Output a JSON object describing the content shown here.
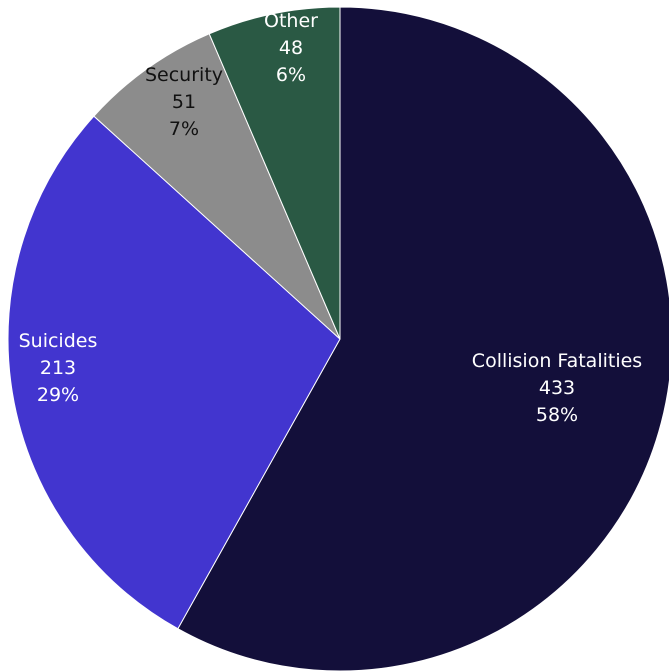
{
  "chart_data": {
    "type": "pie",
    "title": "",
    "slices": [
      {
        "label": "Collision Fatalities",
        "value": 433,
        "percent": "58%",
        "color": "#130f3a",
        "text_color": "#ffffff"
      },
      {
        "label": "Suicides",
        "value": 213,
        "percent": "29%",
        "color": "#4235cf",
        "text_color": "#ffffff"
      },
      {
        "label": "Security",
        "value": 51,
        "percent": "7%",
        "color": "#8c8c8c",
        "text_color": "#111111"
      },
      {
        "label": "Other",
        "value": 48,
        "percent": "6%",
        "color": "#2a5944",
        "text_color": "#ffffff"
      }
    ],
    "legend": "none",
    "start_angle": "12 o'clock",
    "direction": "clockwise"
  }
}
